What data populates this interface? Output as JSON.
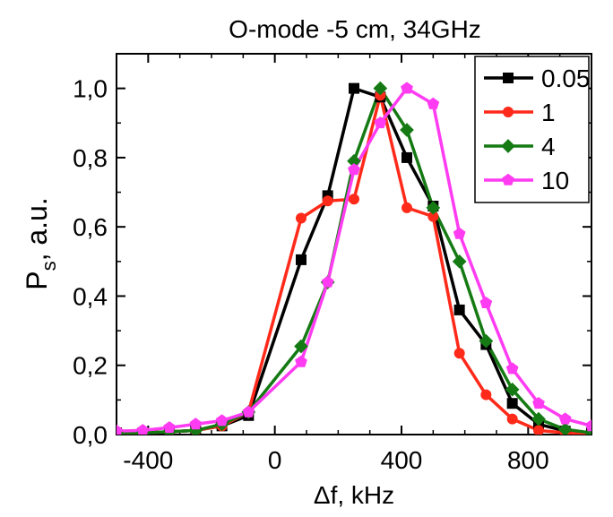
{
  "chart_data": {
    "type": "line",
    "title": "O-mode -5 cm, 34GHz",
    "xlabel": "Δf, kHz",
    "ylabel_main": "P",
    "ylabel_sub": "s",
    "ylabel_tail": ", a.u.",
    "xlim": [
      -500,
      1000
    ],
    "ylim": [
      0,
      1.1
    ],
    "xticks": [
      -400,
      0,
      400,
      800
    ],
    "xtick_labels": [
      "-400",
      "0",
      "400",
      "800"
    ],
    "yticks": [
      0,
      0.2,
      0.4,
      0.6,
      0.8,
      1.0
    ],
    "ytick_labels": [
      "0,0",
      "0,2",
      "0,4",
      "0,6",
      "0,8",
      "1,0"
    ],
    "grid": false,
    "legend_position": "top-right",
    "series": [
      {
        "name": "0.05",
        "color": "#000000",
        "marker": "square",
        "x": [
          -500,
          -417,
          -333,
          -250,
          -167,
          -83,
          83,
          167,
          250,
          333,
          417,
          500,
          583,
          667,
          750,
          833,
          917,
          1000
        ],
        "y": [
          0.005,
          0.005,
          0.008,
          0.012,
          0.025,
          0.055,
          0.505,
          0.69,
          1.0,
          0.975,
          0.8,
          0.66,
          0.36,
          0.26,
          0.09,
          0.03,
          0.01,
          0.005
        ]
      },
      {
        "name": "1",
        "color": "#ff2a1a",
        "marker": "circle",
        "x": [
          -500,
          -417,
          -333,
          -250,
          -167,
          -83,
          83,
          167,
          250,
          333,
          417,
          500,
          583,
          667,
          750,
          833,
          917,
          1000
        ],
        "y": [
          0.005,
          0.005,
          0.008,
          0.012,
          0.025,
          0.065,
          0.625,
          0.675,
          0.68,
          0.98,
          0.655,
          0.63,
          0.235,
          0.115,
          0.045,
          0.012,
          0.005,
          0.002
        ]
      },
      {
        "name": "4",
        "color": "#157a14",
        "marker": "diamond",
        "x": [
          -500,
          -417,
          -333,
          -250,
          -167,
          -83,
          83,
          167,
          250,
          333,
          417,
          500,
          583,
          667,
          750,
          833,
          917,
          1000
        ],
        "y": [
          0.005,
          0.005,
          0.008,
          0.012,
          0.03,
          0.065,
          0.255,
          0.44,
          0.79,
          1.0,
          0.88,
          0.655,
          0.5,
          0.27,
          0.13,
          0.045,
          0.015,
          0.005
        ]
      },
      {
        "name": "10",
        "color": "#ff3cf2",
        "marker": "pentagon",
        "x": [
          -500,
          -417,
          -333,
          -250,
          -167,
          -83,
          83,
          167,
          250,
          333,
          417,
          500,
          583,
          667,
          750,
          833,
          917,
          1000
        ],
        "y": [
          0.01,
          0.012,
          0.02,
          0.03,
          0.04,
          0.065,
          0.21,
          0.44,
          0.765,
          0.9,
          1.0,
          0.955,
          0.58,
          0.38,
          0.19,
          0.09,
          0.045,
          0.025
        ]
      }
    ]
  }
}
